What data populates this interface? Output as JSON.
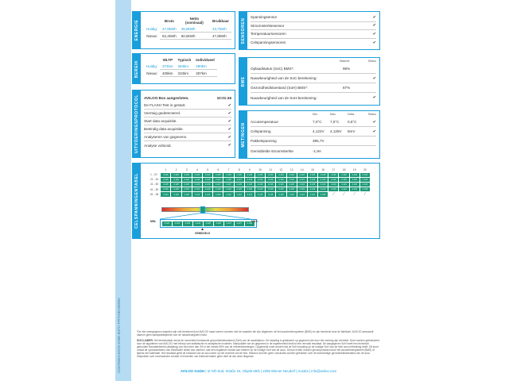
{
  "document_id": "CD6704E4-6AC6-4A6E-B1FC-FFFC0EC8508A",
  "colors": {
    "accent": "#1a9fdc",
    "strip": "#b5dcf2",
    "cell": "#1e9a78"
  },
  "energie": {
    "title": "ENERGIE",
    "cols": [
      "Bruto",
      "Netto (nominaal)",
      "Bruikbaar"
    ],
    "rows": [
      {
        "label": "Huidig:",
        "values": [
          "47,8kWh",
          "45,8kWh",
          "43,7kWh"
        ]
      },
      {
        "label": "Nieuw:",
        "values": [
          "52,4kWh",
          "50,5kWh",
          "47,8kWh"
        ]
      }
    ]
  },
  "bereik": {
    "title": "BEREIK",
    "cols": [
      "WLTP",
      "Typisch",
      "Individueel"
    ],
    "rows": [
      {
        "label": "Huidig:",
        "values": [
          "374km",
          "284km",
          "280km"
        ]
      },
      {
        "label": "Nieuw:",
        "values": [
          "409km",
          "310km",
          "307km"
        ]
      }
    ]
  },
  "protocol": {
    "title": "UITVOERINGSPROTOCOL",
    "heading": "AVILOO Box aangesloten.",
    "time": "10:01:46",
    "items": [
      "De FLASH Test is gestart.",
      "Voertuig gedetecteerd.",
      "Start data acquisitie.",
      "Beëindig data acquisitie.",
      "Analyseren van gegevens.",
      "Analyse voltooid."
    ],
    "check": "✔"
  },
  "sensoren": {
    "title": "SENSOREN",
    "items": [
      "Spanningsensor",
      "Stroomsterktesensor",
      "Temperatuursensoren",
      "Celspanningsensoren"
    ]
  },
  "bms": {
    "title": "BMS",
    "cols": [
      "Waarde",
      "Status"
    ],
    "rows": [
      {
        "label": "Oplaadstatus (SoC) BMS*:",
        "value": "98%",
        "check": false
      },
      {
        "label": "Nauwkeurigheid van de SoC-berekening:",
        "value": "",
        "check": true
      },
      {
        "label": "Gezondheidstoestand (SoH) BMS*:",
        "value": "87%",
        "check": false
      },
      {
        "label": "Nauwkeurigheid van de SoH-berekening:",
        "value": "",
        "check": true
      }
    ]
  },
  "metingen": {
    "title": "METINGEN",
    "cols": [
      "Min.",
      "Max.",
      "Delta",
      "Status"
    ],
    "rows": [
      {
        "label": "Accutemperatuur",
        "values": [
          "7,0°C",
          "7,5°C",
          "0,5°C"
        ],
        "check": true
      },
      {
        "label": "Celspanning",
        "values": [
          "4,122V",
          "4,128V",
          "6mV"
        ],
        "check": true
      },
      {
        "label": "Pakketspanning",
        "values": [
          "395,7V",
          "",
          ""
        ],
        "check": false
      },
      {
        "label": "Gemiddelde stroomsterkte",
        "values": [
          "-1,9A",
          "",
          ""
        ],
        "check": false
      }
    ]
  },
  "celspanning": {
    "title": "CELSPANNINGENTABEL",
    "columns": [
      "1",
      "2",
      "3",
      "4",
      "5",
      "6",
      "7",
      "8",
      "9",
      "10",
      "11",
      "12",
      "13",
      "14",
      "15",
      "16",
      "17",
      "18",
      "19",
      "20"
    ],
    "rows": [
      {
        "label": "1 - 20",
        "values": [
          "4.126",
          "4.126",
          "4.126",
          "4.124",
          "4.124",
          "4.125",
          "4.125",
          "4.126",
          "4.126",
          "4.126",
          "4.124",
          "4.124",
          "4.124",
          "4.124",
          "4.125",
          "4.125",
          "4.126",
          "4.126",
          "4.126",
          "4.126"
        ]
      },
      {
        "label": "21 - 40",
        "values": [
          "4.126",
          "4.126",
          "4.126",
          "4.126",
          "4.126",
          "4.127",
          "4.126",
          "4.127",
          "4.126",
          "4.126",
          "4.126",
          "4.126",
          "4.124",
          "4.127",
          "4.126",
          "4.126",
          "4.126",
          "4.126",
          "4.126",
          "4.126"
        ]
      },
      {
        "label": "41 - 60",
        "values": [
          "4.125",
          "4.126",
          "4.126",
          "4.126",
          "4.126",
          "4.127",
          "4.127",
          "4.126",
          "4.126",
          "4.126",
          "4.126",
          "4.123",
          "4.126",
          "4.124",
          "4.126",
          "4.123",
          "4.123",
          "4.124",
          "4.126",
          "4.126"
        ]
      },
      {
        "label": "61 - 80",
        "values": [
          "4.126",
          "4.125",
          "4.125",
          "4.124",
          "4.126",
          "4.126",
          "4.126",
          "4.126",
          "4.126",
          "4.126",
          "4.126",
          "4.126",
          "4.125",
          "4.125",
          "4.126",
          "4.123",
          "4.125",
          "4.124",
          "4.124",
          "4.128"
        ]
      },
      {
        "label": "81 - 96",
        "values": [
          "4.124",
          "4.125",
          "4.125",
          "4.124",
          "4.124",
          "4.125",
          "4.122",
          "4.124",
          "4.124",
          "4.125",
          "4.126",
          "4.125",
          "4.124",
          "4.124",
          "4.124",
          "4.126",
          "",
          "",
          "",
          ""
        ]
      }
    ],
    "min_label": "MIN.",
    "max_label": "MAX.",
    "range_values": [
      "4.122",
      "4.123",
      "4.123",
      "4.124",
      "4.125",
      "4.126",
      "4.127",
      "4.127",
      "4.128"
    ],
    "average_label": "GEMIDDELD",
    "average_position_pct": 47
  },
  "notes": {
    "footnote": "*De hier weergegeven waarden zijn niet berekend door AVILOO maar komen overeen met de waarden die zijn uitgelezen uit het accubeheersysteem (BMS) en zijn berekend door de fabrikant. AVILOO aanvaardt daarom geen aansprakelijkheid voor de nauwkeurigheid ervan.",
    "disclaimer_label": "DISCLAIMER:",
    "disclaimer": " Het testresultaat omvat de momenteel bestaande gezondheidstoestand (SoH) van de aandrijfaccu. De bepaling is gebaseerd op gegevens die door het voertuig zijn verstrekt. Deze worden geëvalueerd door de algoritmen van AVILOO met behulp van statistische en analytische modellen. Manipulatie van de gegevens in de regeleenheid leidt tot een vervalst resultaat. De aangegeven SoH heeft een technisch gebonden fluctuatiebereik (afwijking) van niet meer dan 3% in ten minste 95% van de referentiemetingen. Opgemerkt moet worden dat de SoH-bepaling op de huidige SoH van de hele accu betrekking heeft. Dit komt omdat de cyclusstrekkers van individuele cellen kan variëren, wat een negatieve invloed kan hebben op de huidige SoH van de accu. Dit kan echter worden gecompenseerd door het accubeheersysteem (BMS) of tijdens een kalibratie. Het resultaat geeft de toestand van de accu weer op het moment van de test. Hierdoor kunnen geen conclusies worden getrokken over de toekomstige gezondheidstoestand van de accu. Uitspraken over mechanische schade of invloeden van buitenaf maken geen deel uit van deze diagnose."
  },
  "footer": {
    "company": "AVILOO GmbH",
    "address": " | IZ NÖ-Süd, Straße 16, Objekt 69/5 | 2355 Wiener Neudorf | Austria | info@aviloo.com"
  }
}
